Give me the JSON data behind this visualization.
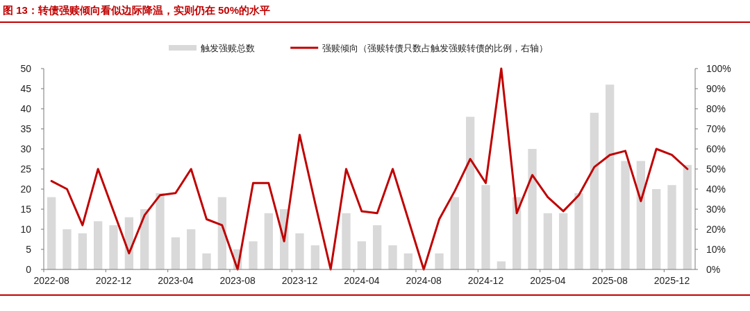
{
  "chart_data": {
    "type": "bar",
    "title": "图 13：转债强赎倾向看似边际降温，实则仍在 50%的水平",
    "categories": [
      "2022-08",
      null,
      null,
      null,
      "2022-12",
      null,
      null,
      null,
      "2023-04",
      null,
      null,
      null,
      "2023-08",
      null,
      null,
      null,
      "2023-12",
      null,
      null,
      null,
      "2024-04",
      null,
      null,
      null,
      "2024-08",
      null,
      null,
      null,
      "2024-12",
      null,
      null,
      null,
      "2025-04",
      null,
      null,
      null,
      "2025-08",
      null,
      null,
      null,
      "2025-12",
      null
    ],
    "series": [
      {
        "name": "触发强赎总数",
        "color": "#d9d9d9",
        "values": [
          18,
          10,
          9,
          12,
          11,
          13,
          15,
          19,
          8,
          10,
          4,
          18,
          5,
          7,
          14,
          15,
          9,
          6,
          0,
          14,
          7,
          11,
          6,
          4,
          0,
          4,
          18,
          38,
          21,
          2,
          18,
          30,
          14,
          14,
          19,
          39,
          46,
          27,
          27,
          20,
          21,
          26
        ]
      },
      {
        "name": "强赎倾向（强赎转债只数占触发强赎转债的比例，右轴）",
        "type": "line",
        "axis": "y2",
        "color": "#c00000",
        "values": [
          44,
          40,
          22,
          50,
          29,
          8,
          27,
          37,
          38,
          50,
          25,
          22,
          0,
          43,
          43,
          14,
          67,
          33,
          0,
          50,
          29,
          28,
          50,
          25,
          0,
          25,
          39,
          55,
          43,
          100,
          28,
          47,
          36,
          29,
          37,
          51,
          57,
          59,
          34,
          60,
          57,
          50
        ]
      }
    ],
    "ylim": [
      0,
      50
    ],
    "yticks": [
      0,
      5,
      10,
      15,
      20,
      25,
      30,
      35,
      40,
      45,
      50
    ],
    "y2lim": [
      0,
      100
    ],
    "y2ticks": [
      {
        "value": 0,
        "label": "0%"
      },
      {
        "value": 10,
        "label": "10%"
      },
      {
        "value": 20,
        "label": "20%"
      },
      {
        "value": 30,
        "label": "30%"
      },
      {
        "value": 40,
        "label": "40%"
      },
      {
        "value": 50,
        "label": "50%"
      },
      {
        "value": 60,
        "label": "60%"
      },
      {
        "value": 70,
        "label": "70%"
      },
      {
        "value": 80,
        "label": "80%"
      },
      {
        "value": 90,
        "label": "90%"
      },
      {
        "value": 100,
        "label": "100%"
      }
    ],
    "legend": "top",
    "grid": false
  }
}
